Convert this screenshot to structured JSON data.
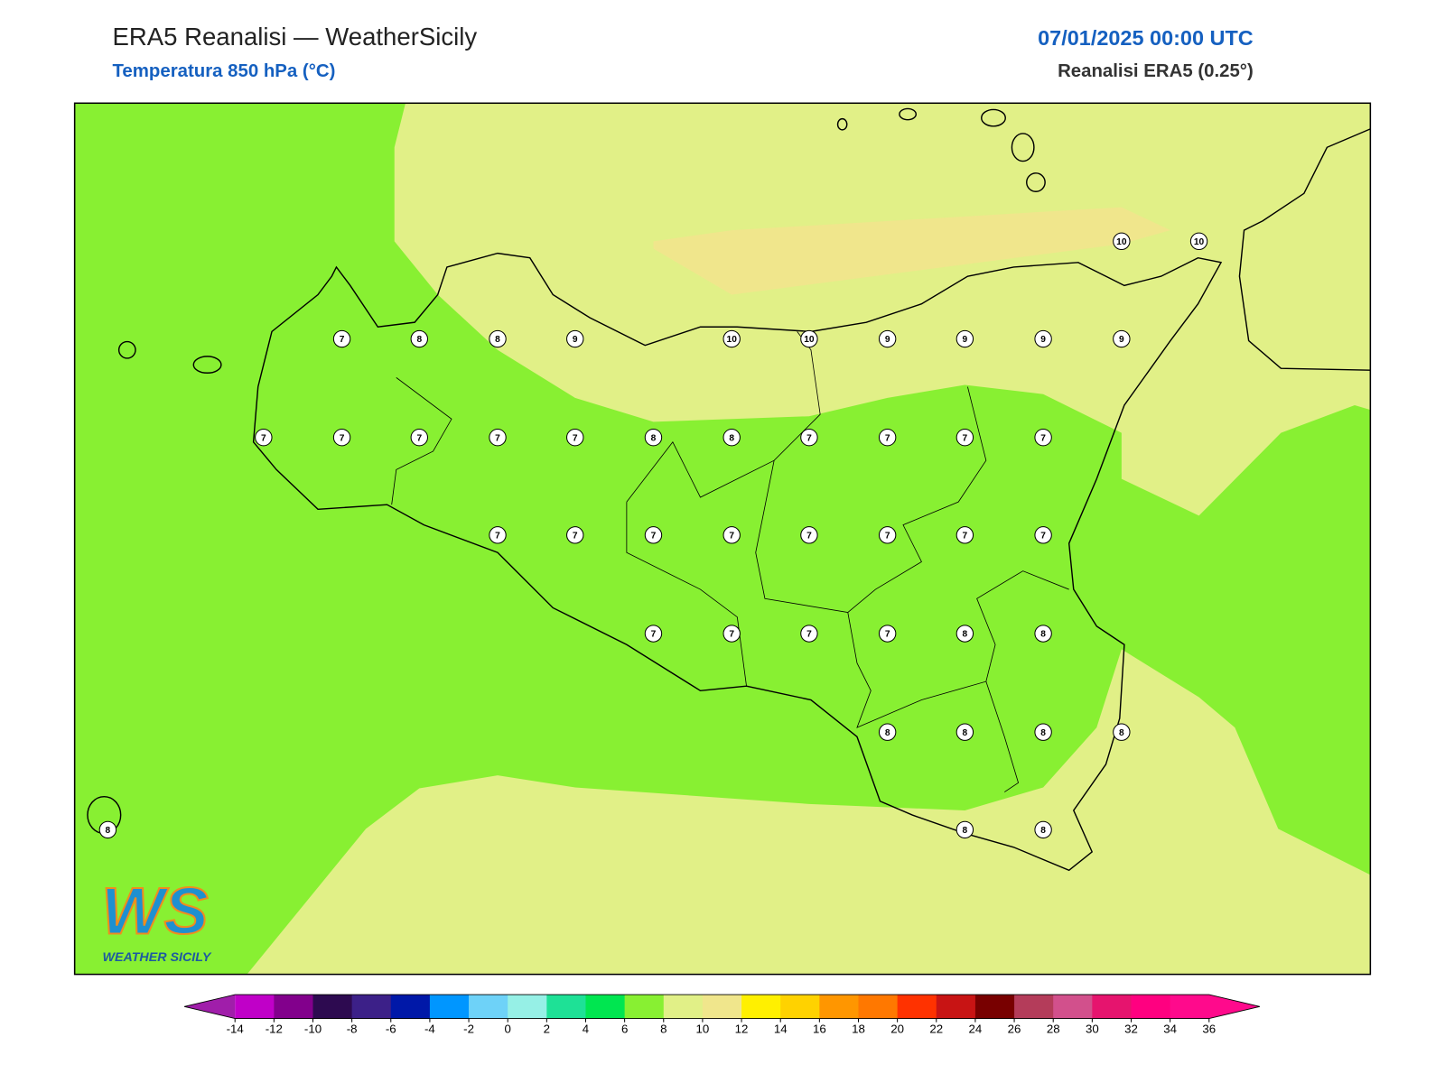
{
  "header": {
    "title": "ERA5 Reanalisi — WeatherSicily",
    "subtitle": "Temperatura 850 hPa (°C)",
    "datetime": "07/01/2025 00:00 UTC",
    "source": "Reanalisi ERA5 (0.25°)"
  },
  "logo": {
    "mark": "WS",
    "text": "WEATHER SICILY"
  },
  "stations": [
    10,
    10,
    7,
    8,
    8,
    9,
    10,
    10,
    9,
    9,
    9,
    9,
    7,
    7,
    7,
    7,
    7,
    8,
    8,
    7,
    7,
    7,
    7,
    7,
    7,
    7,
    7,
    7,
    7,
    7,
    7,
    7,
    7,
    7,
    7,
    8,
    8,
    8,
    8,
    8,
    8,
    8,
    8,
    8
  ],
  "colorbar": {
    "ticks": [
      -14,
      -12,
      -10,
      -8,
      -6,
      -4,
      -2,
      0,
      2,
      4,
      6,
      8,
      10,
      12,
      14,
      16,
      18,
      20,
      22,
      24,
      26,
      28,
      30,
      32,
      34,
      36
    ],
    "under": "#a01eaa",
    "over": "#ff0a8c",
    "colors": [
      "#c000c8",
      "#82008c",
      "#2d0a50",
      "#3c2088",
      "#0018a8",
      "#0096ff",
      "#6ed2f8",
      "#96f0e6",
      "#1ee196",
      "#00e650",
      "#88f032",
      "#e1f087",
      "#f0e68c",
      "#fff000",
      "#ffd200",
      "#ff9600",
      "#ff7800",
      "#ff3200",
      "#c81414",
      "#780000",
      "#b43c5a",
      "#d2508c",
      "#e6146e",
      "#ff0080",
      "#ff0a8c"
    ]
  }
}
